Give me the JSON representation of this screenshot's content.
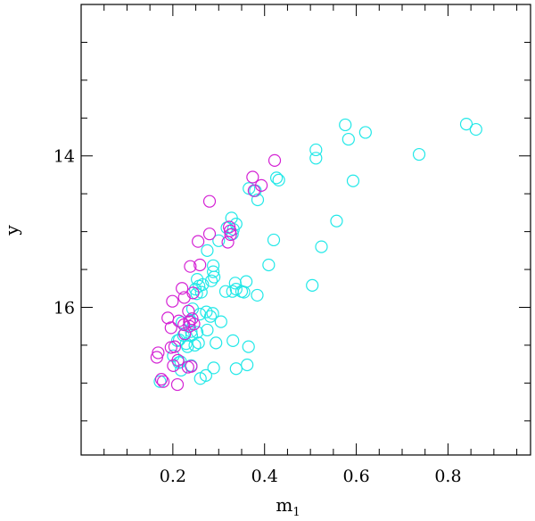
{
  "chart_data": {
    "type": "scatter",
    "title": "",
    "xlabel_main": "m",
    "xlabel_sub": "1",
    "ylabel": "y",
    "xlim": [
      0.0,
      0.98
    ],
    "ylim": [
      17.95,
      12.0
    ],
    "y_inverted": true,
    "grid": false,
    "x_ticks": [
      {
        "value": 0.2,
        "label": "0.2"
      },
      {
        "value": 0.4,
        "label": "0.4"
      },
      {
        "value": 0.6,
        "label": "0.6"
      },
      {
        "value": 0.8,
        "label": "0.8"
      }
    ],
    "y_ticks": [
      {
        "value": 14,
        "label": "14"
      },
      {
        "value": 16,
        "label": "16"
      }
    ],
    "x_minor_step": 0.05,
    "y_minor_step": 0.5,
    "series": [
      {
        "color": "#22e8e8",
        "marker": "open-circle",
        "x": [
          0.84,
          0.861,
          0.576,
          0.583,
          0.62,
          0.737,
          0.512,
          0.512,
          0.593,
          0.426,
          0.431,
          0.366,
          0.38,
          0.385,
          0.328,
          0.338,
          0.318,
          0.332,
          0.33,
          0.557,
          0.42,
          0.524,
          0.275,
          0.288,
          0.288,
          0.29,
          0.284,
          0.3,
          0.409,
          0.253,
          0.257,
          0.265,
          0.336,
          0.36,
          0.35,
          0.249,
          0.252,
          0.262,
          0.33,
          0.338,
          0.355,
          0.315,
          0.384,
          0.504,
          0.243,
          0.259,
          0.273,
          0.287,
          0.282,
          0.305,
          0.22,
          0.237,
          0.24,
          0.253,
          0.275,
          0.223,
          0.21,
          0.241,
          0.229,
          0.248,
          0.256,
          0.214,
          0.232,
          0.294,
          0.331,
          0.365,
          0.201,
          0.213,
          0.217,
          0.24,
          0.218,
          0.289,
          0.338,
          0.362,
          0.272,
          0.26,
          0.172
        ],
        "y": [
          13.58,
          13.65,
          13.59,
          13.78,
          13.69,
          13.98,
          13.92,
          14.03,
          14.33,
          14.29,
          14.32,
          14.43,
          14.46,
          14.58,
          14.82,
          14.9,
          14.95,
          14.97,
          15.03,
          14.86,
          15.11,
          15.2,
          15.25,
          15.45,
          15.53,
          15.6,
          15.65,
          15.12,
          15.44,
          15.63,
          15.72,
          15.7,
          15.68,
          15.66,
          15.79,
          15.76,
          15.82,
          15.8,
          15.79,
          15.76,
          15.8,
          15.79,
          15.84,
          15.71,
          16.02,
          16.09,
          16.06,
          16.08,
          16.12,
          16.19,
          16.2,
          16.18,
          16.32,
          16.33,
          16.3,
          16.37,
          16.44,
          16.37,
          16.48,
          16.5,
          16.47,
          16.43,
          16.52,
          16.47,
          16.44,
          16.52,
          16.64,
          16.73,
          16.72,
          16.77,
          16.83,
          16.8,
          16.81,
          16.76,
          16.9,
          16.94,
          16.98
        ]
      },
      {
        "color": "#d422d4",
        "marker": "open-circle",
        "x": [
          0.422,
          0.393,
          0.374,
          0.377,
          0.28,
          0.323,
          0.325,
          0.326,
          0.255,
          0.28,
          0.32,
          0.238,
          0.259,
          0.22,
          0.244,
          0.225,
          0.199,
          0.234,
          0.236,
          0.246,
          0.189,
          0.236,
          0.196,
          0.224,
          0.242,
          0.213,
          0.226,
          0.196,
          0.204,
          0.211,
          0.165,
          0.201,
          0.233,
          0.24,
          0.168,
          0.175,
          0.179,
          0.21
        ],
        "y": [
          14.06,
          14.39,
          14.28,
          14.46,
          14.6,
          14.94,
          14.99,
          15.04,
          15.13,
          15.03,
          15.14,
          15.46,
          15.44,
          15.75,
          15.81,
          15.87,
          15.92,
          16.05,
          16.19,
          16.22,
          16.14,
          16.25,
          16.27,
          16.23,
          16.15,
          16.18,
          16.35,
          16.53,
          16.52,
          16.7,
          16.66,
          16.77,
          16.79,
          16.78,
          16.6,
          16.95,
          16.98,
          17.02
        ]
      }
    ]
  }
}
